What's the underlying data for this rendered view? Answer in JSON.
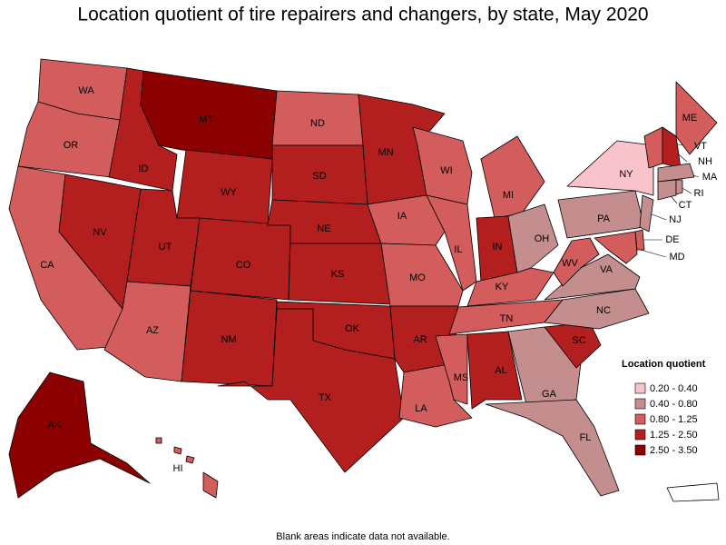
{
  "title": "Location quotient of tire repairers and changers, by state, May 2020",
  "legend": {
    "title": "Location quotient",
    "entries": [
      {
        "label": "0.20 - 0.40",
        "color": "#f9c3cb"
      },
      {
        "label": "0.40 - 0.80",
        "color": "#c48e8e"
      },
      {
        "label": "0.80 - 1.25",
        "color": "#d35c5c"
      },
      {
        "label": "1.25 - 2.50",
        "color": "#b31f1f"
      },
      {
        "label": "2.50 - 3.50",
        "color": "#8b0000"
      }
    ]
  },
  "states": [
    {
      "abbr": "WA",
      "range": "0.80 - 1.25"
    },
    {
      "abbr": "OR",
      "range": "0.80 - 1.25"
    },
    {
      "abbr": "CA",
      "range": "0.80 - 1.25"
    },
    {
      "abbr": "NV",
      "range": "1.25 - 2.50"
    },
    {
      "abbr": "ID",
      "range": "1.25 - 2.50"
    },
    {
      "abbr": "MT",
      "range": "2.50 - 3.50"
    },
    {
      "abbr": "WY",
      "range": "1.25 - 2.50"
    },
    {
      "abbr": "UT",
      "range": "1.25 - 2.50"
    },
    {
      "abbr": "AZ",
      "range": "0.80 - 1.25"
    },
    {
      "abbr": "CO",
      "range": "1.25 - 2.50"
    },
    {
      "abbr": "NM",
      "range": "1.25 - 2.50"
    },
    {
      "abbr": "ND",
      "range": "0.80 - 1.25"
    },
    {
      "abbr": "SD",
      "range": "1.25 - 2.50"
    },
    {
      "abbr": "NE",
      "range": "1.25 - 2.50"
    },
    {
      "abbr": "KS",
      "range": "1.25 - 2.50"
    },
    {
      "abbr": "OK",
      "range": "1.25 - 2.50"
    },
    {
      "abbr": "TX",
      "range": "1.25 - 2.50"
    },
    {
      "abbr": "MN",
      "range": "1.25 - 2.50"
    },
    {
      "abbr": "IA",
      "range": "0.80 - 1.25"
    },
    {
      "abbr": "MO",
      "range": "0.80 - 1.25"
    },
    {
      "abbr": "AR",
      "range": "1.25 - 2.50"
    },
    {
      "abbr": "LA",
      "range": "0.80 - 1.25"
    },
    {
      "abbr": "WI",
      "range": "0.80 - 1.25"
    },
    {
      "abbr": "IL",
      "range": "0.80 - 1.25"
    },
    {
      "abbr": "MI",
      "range": "0.80 - 1.25"
    },
    {
      "abbr": "IN",
      "range": "1.25 - 2.50"
    },
    {
      "abbr": "OH",
      "range": "0.40 - 0.80"
    },
    {
      "abbr": "KY",
      "range": "0.80 - 1.25"
    },
    {
      "abbr": "TN",
      "range": "0.80 - 1.25"
    },
    {
      "abbr": "MS",
      "range": "0.80 - 1.25"
    },
    {
      "abbr": "AL",
      "range": "1.25 - 2.50"
    },
    {
      "abbr": "GA",
      "range": "0.40 - 0.80"
    },
    {
      "abbr": "FL",
      "range": "0.40 - 0.80"
    },
    {
      "abbr": "SC",
      "range": "1.25 - 2.50"
    },
    {
      "abbr": "NC",
      "range": "0.40 - 0.80"
    },
    {
      "abbr": "VA",
      "range": "0.40 - 0.80"
    },
    {
      "abbr": "WV",
      "range": "0.80 - 1.25"
    },
    {
      "abbr": "PA",
      "range": "0.40 - 0.80"
    },
    {
      "abbr": "NY",
      "range": "0.20 - 0.40"
    },
    {
      "abbr": "ME",
      "range": "0.80 - 1.25"
    },
    {
      "abbr": "VT",
      "range": "0.80 - 1.25"
    },
    {
      "abbr": "NH",
      "range": "1.25 - 2.50"
    },
    {
      "abbr": "MA",
      "range": "0.40 - 0.80"
    },
    {
      "abbr": "CT",
      "range": "0.40 - 0.80"
    },
    {
      "abbr": "RI",
      "range": "0.40 - 0.80"
    },
    {
      "abbr": "NJ",
      "range": "0.40 - 0.80"
    },
    {
      "abbr": "DE",
      "range": "0.80 - 1.25"
    },
    {
      "abbr": "MD",
      "range": "0.80 - 1.25"
    },
    {
      "abbr": "AK",
      "range": "2.50 - 3.50"
    },
    {
      "abbr": "HI",
      "range": "0.80 - 1.25"
    }
  ],
  "footnote": "Blank areas indicate data not available."
}
